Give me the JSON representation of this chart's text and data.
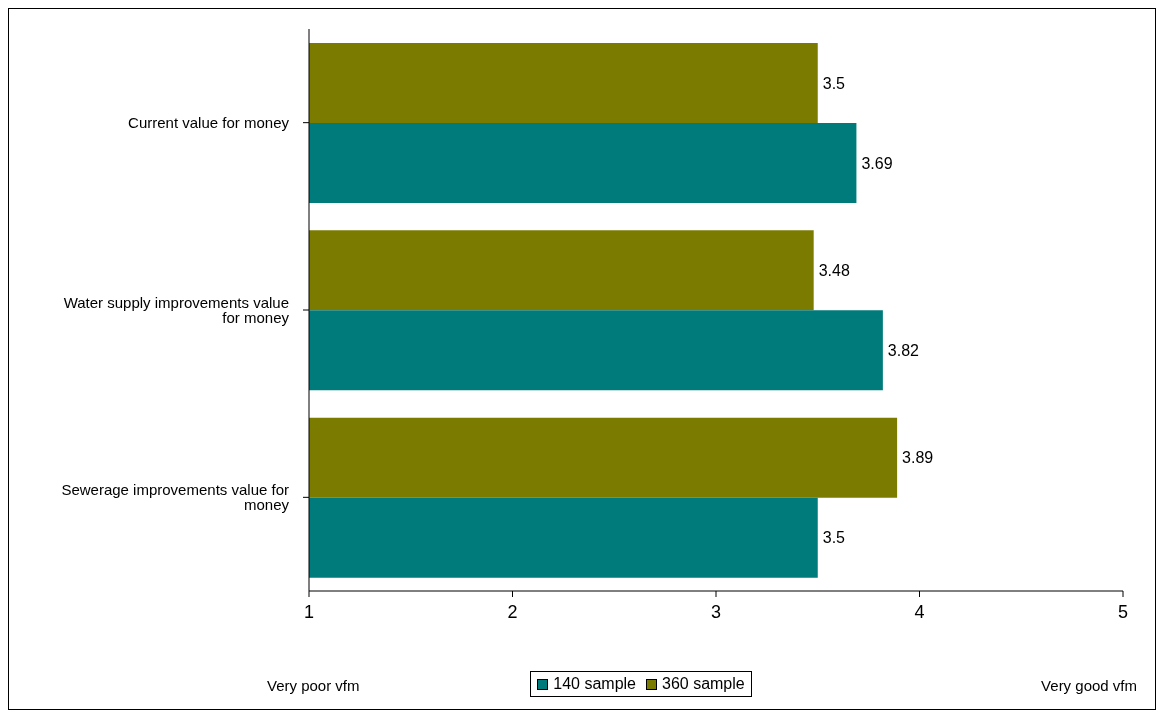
{
  "chart_data": {
    "type": "bar",
    "orientation": "horizontal",
    "categories": [
      "Current value for money",
      "Water supply improvements value for money",
      "Sewerage improvements value for money"
    ],
    "series": [
      {
        "name": "140 sample",
        "color": "#007b7b",
        "values": [
          3.69,
          3.82,
          3.5
        ]
      },
      {
        "name": "360 sample",
        "color": "#7b7b00",
        "values": [
          3.5,
          3.48,
          3.89
        ]
      }
    ],
    "xlim": [
      1,
      5
    ],
    "xticks": [
      1,
      2,
      3,
      4,
      5
    ],
    "legend": "bottom",
    "data_labels": true,
    "annotations": [
      "Very poor vfm",
      "Very good vfm"
    ]
  }
}
